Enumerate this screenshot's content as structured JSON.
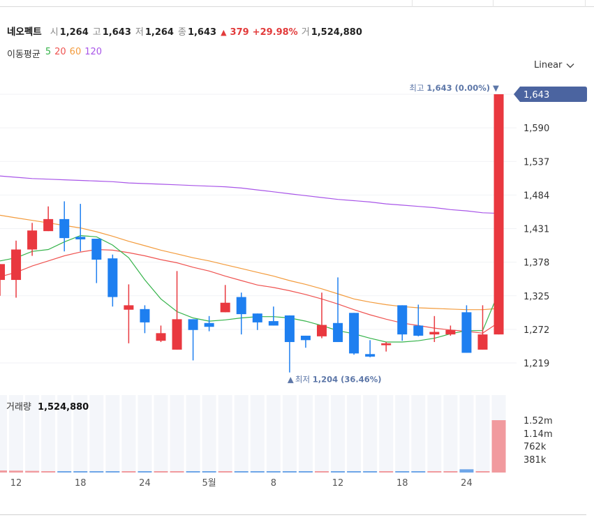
{
  "header": {
    "stock_name": "네오펙트",
    "open_label": "시",
    "open_value": "1,264",
    "high_label": "고",
    "high_value": "1,643",
    "low_label": "저",
    "low_value": "1,264",
    "close_label": "종",
    "close_value": "1,643",
    "change_arrow": "▲",
    "change_value": "379",
    "change_pct": "+29.98%",
    "volume_label": "거",
    "volume_value": "1,524,880"
  },
  "moving_average": {
    "label": "이동평균",
    "periods": [
      {
        "label": "5",
        "color": "#35b34a"
      },
      {
        "label": "20",
        "color": "#ef5350"
      },
      {
        "label": "60",
        "color": "#f39b3c"
      },
      {
        "label": "120",
        "color": "#a855e8"
      }
    ]
  },
  "scale_selector": {
    "label": "Linear"
  },
  "volume_panel": {
    "label": "거래량",
    "value": "1,524,880"
  },
  "colors": {
    "up": "#e9383f",
    "down": "#1e7ff0",
    "price_tag": "#4b64a0",
    "vol_up": "#f19a9e",
    "vol_down": "#6ea6e8"
  },
  "chart_data": {
    "type": "candlestick",
    "price_axis": {
      "min": 1204,
      "max": 1643,
      "ticks": [
        "1,643",
        "1,590",
        "1,537",
        "1,484",
        "1,431",
        "1,378",
        "1,325",
        "1,272",
        "1,219"
      ]
    },
    "current_price_tag": "1,643",
    "high_annotation": {
      "label": "최고",
      "value": "1,643",
      "pct": "(0.00%)",
      "marker": "▼"
    },
    "low_annotation": {
      "label": "최저",
      "value": "1,204",
      "pct": "(36.46%)",
      "marker": "▲"
    },
    "x_ticks": [
      {
        "label": "12",
        "index": 1
      },
      {
        "label": "18",
        "index": 5
      },
      {
        "label": "24",
        "index": 9
      },
      {
        "label": "5월",
        "index": 13
      },
      {
        "label": "8",
        "index": 17
      },
      {
        "label": "12",
        "index": 21
      },
      {
        "label": "18",
        "index": 25
      },
      {
        "label": "24",
        "index": 29
      }
    ],
    "candles": [
      {
        "o": 1350,
        "h": 1375,
        "l": 1325,
        "c": 1375
      },
      {
        "o": 1350,
        "h": 1412,
        "l": 1322,
        "c": 1398
      },
      {
        "o": 1398,
        "h": 1440,
        "l": 1388,
        "c": 1428
      },
      {
        "o": 1427,
        "h": 1466,
        "l": 1427,
        "c": 1446
      },
      {
        "o": 1446,
        "h": 1474,
        "l": 1395,
        "c": 1416
      },
      {
        "o": 1418,
        "h": 1470,
        "l": 1395,
        "c": 1414
      },
      {
        "o": 1415,
        "h": 1415,
        "l": 1345,
        "c": 1382
      },
      {
        "o": 1384,
        "h": 1390,
        "l": 1308,
        "c": 1323
      },
      {
        "o": 1303,
        "h": 1343,
        "l": 1250,
        "c": 1310
      },
      {
        "o": 1304,
        "h": 1310,
        "l": 1266,
        "c": 1283
      },
      {
        "o": 1254,
        "h": 1278,
        "l": 1252,
        "c": 1266
      },
      {
        "o": 1240,
        "h": 1364,
        "l": 1240,
        "c": 1288
      },
      {
        "o": 1288,
        "h": 1288,
        "l": 1223,
        "c": 1271
      },
      {
        "o": 1282,
        "h": 1293,
        "l": 1269,
        "c": 1276
      },
      {
        "o": 1299,
        "h": 1342,
        "l": 1299,
        "c": 1314
      },
      {
        "o": 1323,
        "h": 1330,
        "l": 1264,
        "c": 1296
      },
      {
        "o": 1297,
        "h": 1297,
        "l": 1271,
        "c": 1283
      },
      {
        "o": 1285,
        "h": 1308,
        "l": 1278,
        "c": 1278
      },
      {
        "o": 1294,
        "h": 1294,
        "l": 1204,
        "c": 1252
      },
      {
        "o": 1262,
        "h": 1262,
        "l": 1243,
        "c": 1255
      },
      {
        "o": 1261,
        "h": 1330,
        "l": 1258,
        "c": 1279
      },
      {
        "o": 1282,
        "h": 1354,
        "l": 1252,
        "c": 1252
      },
      {
        "o": 1298,
        "h": 1298,
        "l": 1232,
        "c": 1234
      },
      {
        "o": 1233,
        "h": 1255,
        "l": 1228,
        "c": 1229
      },
      {
        "o": 1247,
        "h": 1252,
        "l": 1237,
        "c": 1250
      },
      {
        "o": 1310,
        "h": 1310,
        "l": 1254,
        "c": 1264
      },
      {
        "o": 1278,
        "h": 1311,
        "l": 1261,
        "c": 1262
      },
      {
        "o": 1264,
        "h": 1293,
        "l": 1252,
        "c": 1268
      },
      {
        "o": 1264,
        "h": 1278,
        "l": 1262,
        "c": 1271
      },
      {
        "o": 1299,
        "h": 1310,
        "l": 1235,
        "c": 1235
      },
      {
        "o": 1240,
        "h": 1310,
        "l": 1240,
        "c": 1264
      },
      {
        "o": 1264,
        "h": 1643,
        "l": 1264,
        "c": 1643
      }
    ],
    "volume": {
      "ticks": [
        "1.52m",
        "1.14m",
        "762k",
        "381k"
      ],
      "max": 1524880,
      "values": [
        60000,
        55000,
        48000,
        35000,
        40000,
        30000,
        32000,
        22000,
        18000,
        12000,
        10000,
        8000,
        6000,
        9000,
        15000,
        12000,
        8000,
        6000,
        18000,
        6000,
        8000,
        9000,
        12000,
        6000,
        9000,
        8000,
        6000,
        6000,
        7000,
        95000,
        30000,
        1524880
      ]
    },
    "moving_averages": {
      "ma5": [
        1380,
        1385,
        1395,
        1398,
        1410,
        1420,
        1418,
        1405,
        1385,
        1350,
        1320,
        1300,
        1290,
        1285,
        1287,
        1290,
        1292,
        1292,
        1290,
        1285,
        1278,
        1270,
        1265,
        1258,
        1252,
        1252,
        1254,
        1258,
        1265,
        1270,
        1270,
        1331
      ],
      "ma20": [
        1355,
        1362,
        1372,
        1380,
        1388,
        1394,
        1398,
        1397,
        1393,
        1388,
        1382,
        1377,
        1370,
        1364,
        1356,
        1349,
        1342,
        1338,
        1333,
        1327,
        1320,
        1312,
        1303,
        1295,
        1288,
        1282,
        1278,
        1274,
        1271,
        1269,
        1266,
        1283
      ],
      "ma60": [
        1452,
        1448,
        1444,
        1440,
        1436,
        1432,
        1426,
        1419,
        1411,
        1404,
        1397,
        1391,
        1385,
        1380,
        1374,
        1368,
        1362,
        1356,
        1349,
        1343,
        1336,
        1328,
        1320,
        1315,
        1311,
        1308,
        1306,
        1305,
        1304,
        1303,
        1303,
        1305
      ],
      "ma120": [
        1514,
        1512,
        1510,
        1509,
        1508,
        1507,
        1506,
        1505,
        1503,
        1502,
        1501,
        1500,
        1499,
        1498,
        1497,
        1495,
        1492,
        1489,
        1486,
        1483,
        1480,
        1477,
        1475,
        1473,
        1470,
        1468,
        1466,
        1464,
        1461,
        1459,
        1456,
        1455
      ]
    }
  }
}
